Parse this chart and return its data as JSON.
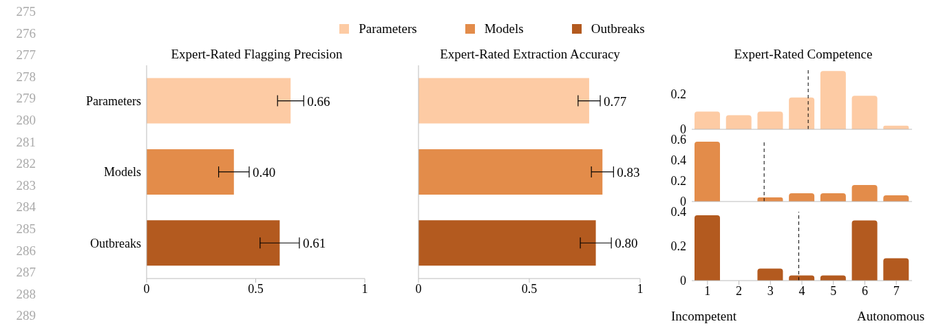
{
  "chart_data": [
    {
      "type": "bar",
      "orientation": "horizontal",
      "stacked": true,
      "title": "Expert-Rated Flagging Precision",
      "categories": [
        "Parameters",
        "Models",
        "Outbreaks"
      ],
      "legend": "top",
      "xlim": [
        0,
        1
      ],
      "xticks": [
        0,
        0.5,
        1
      ],
      "series": [
        {
          "name": "Parameters",
          "color": "#fdcba4",
          "values": [
            0.66,
            null,
            null
          ],
          "errors": [
            [
              0.6,
              0.72
            ],
            null,
            null
          ],
          "value_labels": [
            "0.66",
            null,
            null
          ]
        },
        {
          "name": "Models",
          "color": "#e38c4a",
          "values": [
            null,
            0.4,
            null
          ],
          "errors": [
            null,
            [
              0.33,
              0.47
            ],
            null
          ],
          "value_labels": [
            null,
            "0.40",
            null
          ]
        },
        {
          "name": "Outbreaks",
          "color": "#b35a1f",
          "values": [
            null,
            null,
            0.61
          ],
          "errors": [
            null,
            null,
            [
              0.52,
              0.7
            ]
          ],
          "value_labels": [
            null,
            null,
            "0.61"
          ]
        }
      ],
      "annotations": [
        "275",
        "276",
        "277",
        "278",
        "279",
        "280",
        "281",
        "282",
        "283",
        "284",
        "285",
        "286",
        "287",
        "288",
        "289"
      ]
    },
    {
      "type": "bar",
      "orientation": "horizontal",
      "title": "Expert-Rated Extraction Accuracy",
      "categories": [
        null,
        null,
        null
      ],
      "tick_labels": "x",
      "xlim": [
        0,
        1
      ],
      "xticks": [
        0,
        0.5,
        1
      ],
      "values": [
        0.77,
        0.83,
        0.8
      ],
      "colors": [
        "#fdcba4",
        "#e38c4a",
        "#b35a1f"
      ],
      "errors": [
        [
          0.72,
          0.82
        ],
        [
          0.78,
          0.88
        ],
        [
          0.73,
          0.87
        ]
      ],
      "value_labels": [
        "0.77",
        "0.83",
        "0.80"
      ]
    },
    {
      "type": "bar",
      "title": "Expert-Rated Competence",
      "x": [
        1,
        2,
        3,
        4,
        5,
        6,
        7
      ],
      "values": [
        0.1,
        0.08,
        0.1,
        0.18,
        0.33,
        0.19,
        0.02
      ],
      "color": "#fdcba4",
      "xlim": [
        0.5,
        7.5
      ],
      "xticks": [
        1,
        2,
        3,
        4,
        5,
        6,
        7
      ],
      "ylim": [
        0,
        0.35
      ],
      "yticks": [
        0,
        0.2
      ],
      "tick_labels": "y",
      "ref_lines": [
        {
          "axis": "x",
          "value": 4.2,
          "line_style": "dashed",
          "color": "#000000"
        }
      ]
    },
    {
      "type": "bar",
      "x": [
        1,
        2,
        3,
        4,
        5,
        6,
        7
      ],
      "values": [
        0.58,
        0,
        0.04,
        0.08,
        0.08,
        0.16,
        0.06
      ],
      "color": "#e38c4a",
      "xlim": [
        0.5,
        7.5
      ],
      "xticks": [
        1,
        2,
        3,
        4,
        5,
        6,
        7
      ],
      "ylim": [
        0,
        0.6
      ],
      "yticks": [
        0,
        0.2,
        0.4,
        0.6
      ],
      "tick_labels": "y",
      "ref_lines": [
        {
          "axis": "x",
          "value": 2.8,
          "line_style": "dashed",
          "color": "#000000"
        }
      ]
    },
    {
      "type": "bar",
      "x": [
        1,
        2,
        3,
        4,
        5,
        6,
        7
      ],
      "values": [
        0.38,
        0,
        0.07,
        0.03,
        0.03,
        0.35,
        0.13
      ],
      "color": "#b35a1f",
      "xlim": [
        0.5,
        7.5
      ],
      "xticks": [
        1,
        2,
        3,
        4,
        5,
        6,
        7
      ],
      "ylim": [
        0,
        0.4
      ],
      "yticks": [
        0,
        0.2,
        0.4
      ],
      "ref_lines": [
        {
          "axis": "x",
          "value": 3.9,
          "line_style": "dashed",
          "color": "#000000"
        }
      ],
      "annotations": [
        "Incompetent",
        "Autonomous"
      ]
    }
  ]
}
